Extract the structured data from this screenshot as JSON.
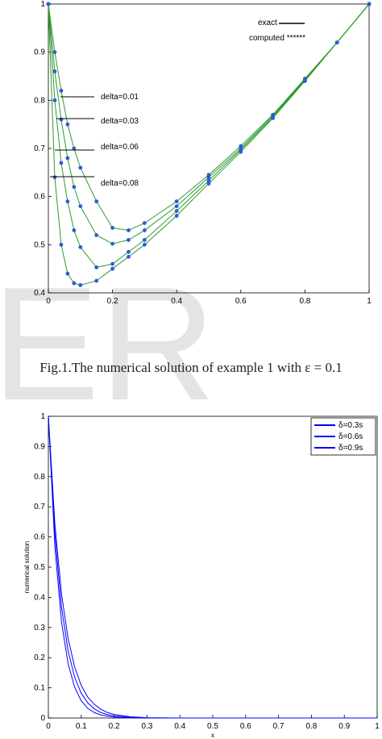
{
  "watermark": "ER",
  "chart_data": [
    {
      "type": "line",
      "caption": "Fig.1.The numerical solution of example 1 with ε = 0.1",
      "x": [
        0,
        0.02,
        0.04,
        0.06,
        0.08,
        0.1,
        0.15,
        0.2,
        0.25,
        0.3,
        0.4,
        0.5,
        0.6,
        0.7,
        0.8,
        0.9,
        1
      ],
      "series": [
        {
          "name": "delta=0.01",
          "color": "#2e9a2e",
          "values": [
            1,
            0.9,
            0.82,
            0.75,
            0.7,
            0.66,
            0.59,
            0.535,
            0.53,
            0.545,
            0.59,
            0.645,
            0.705,
            0.77,
            0.845,
            0.92,
            1
          ]
        },
        {
          "name": "delta=0.03",
          "color": "#2e9a2e",
          "values": [
            1,
            0.86,
            0.76,
            0.68,
            0.62,
            0.58,
            0.52,
            0.502,
            0.51,
            0.53,
            0.58,
            0.64,
            0.7,
            0.768,
            0.843,
            0.92,
            1
          ]
        },
        {
          "name": "delta=0.06",
          "color": "#2e9a2e",
          "values": [
            1,
            0.8,
            0.67,
            0.59,
            0.53,
            0.495,
            0.453,
            0.46,
            0.485,
            0.51,
            0.57,
            0.633,
            0.697,
            0.765,
            0.842,
            0.92,
            1
          ]
        },
        {
          "name": "delta=0.08",
          "color": "#2e9a2e",
          "values": [
            1,
            0.64,
            0.5,
            0.44,
            0.42,
            0.416,
            0.425,
            0.45,
            0.475,
            0.5,
            0.56,
            0.627,
            0.693,
            0.763,
            0.84,
            0.92,
            1
          ]
        }
      ],
      "marker_color": "#2a5bd7",
      "legend": [
        "exact",
        "computed ******"
      ],
      "xlim": [
        0,
        1
      ],
      "xticks": [
        0,
        0.2,
        0.4,
        0.6,
        0.8,
        1
      ],
      "ylim": [
        0.4,
        1
      ],
      "yticks": [
        0.4,
        0.5,
        0.6,
        0.7,
        0.8,
        0.9,
        1
      ]
    },
    {
      "type": "line",
      "x_label": "x",
      "y_label": "numerical solution",
      "x": [
        0,
        0.02,
        0.04,
        0.06,
        0.08,
        0.1,
        0.12,
        0.14,
        0.16,
        0.18,
        0.2,
        0.25,
        0.3,
        0.4,
        0.6,
        0.8,
        1
      ],
      "series": [
        {
          "name": "δ=0.3s",
          "color": "#0000ff",
          "values": [
            1,
            0.565,
            0.319,
            0.18,
            0.102,
            0.057,
            0.032,
            0.018,
            0.01,
            0.006,
            0.003,
            0.001,
            0,
            0,
            0,
            0,
            0
          ]
        },
        {
          "name": "δ=0.6s",
          "color": "#0000ff",
          "values": [
            1,
            0.607,
            0.368,
            0.223,
            0.135,
            0.082,
            0.05,
            0.03,
            0.018,
            0.011,
            0.007,
            0.002,
            0,
            0,
            0,
            0,
            0
          ]
        },
        {
          "name": "δ=0.9s",
          "color": "#0000ff",
          "values": [
            1,
            0.641,
            0.411,
            0.264,
            0.169,
            0.108,
            0.069,
            0.045,
            0.029,
            0.018,
            0.012,
            0.004,
            0.001,
            0,
            0,
            0,
            0
          ]
        }
      ],
      "legend_position": "upper right",
      "xlim": [
        0,
        1
      ],
      "xticks": [
        0,
        0.1,
        0.2,
        0.3,
        0.4,
        0.5,
        0.6,
        0.7,
        0.8,
        0.9,
        1
      ],
      "ylim": [
        0,
        1
      ],
      "yticks": [
        0,
        0.1,
        0.2,
        0.3,
        0.4,
        0.5,
        0.6,
        0.7,
        0.8,
        0.9,
        1
      ]
    }
  ]
}
